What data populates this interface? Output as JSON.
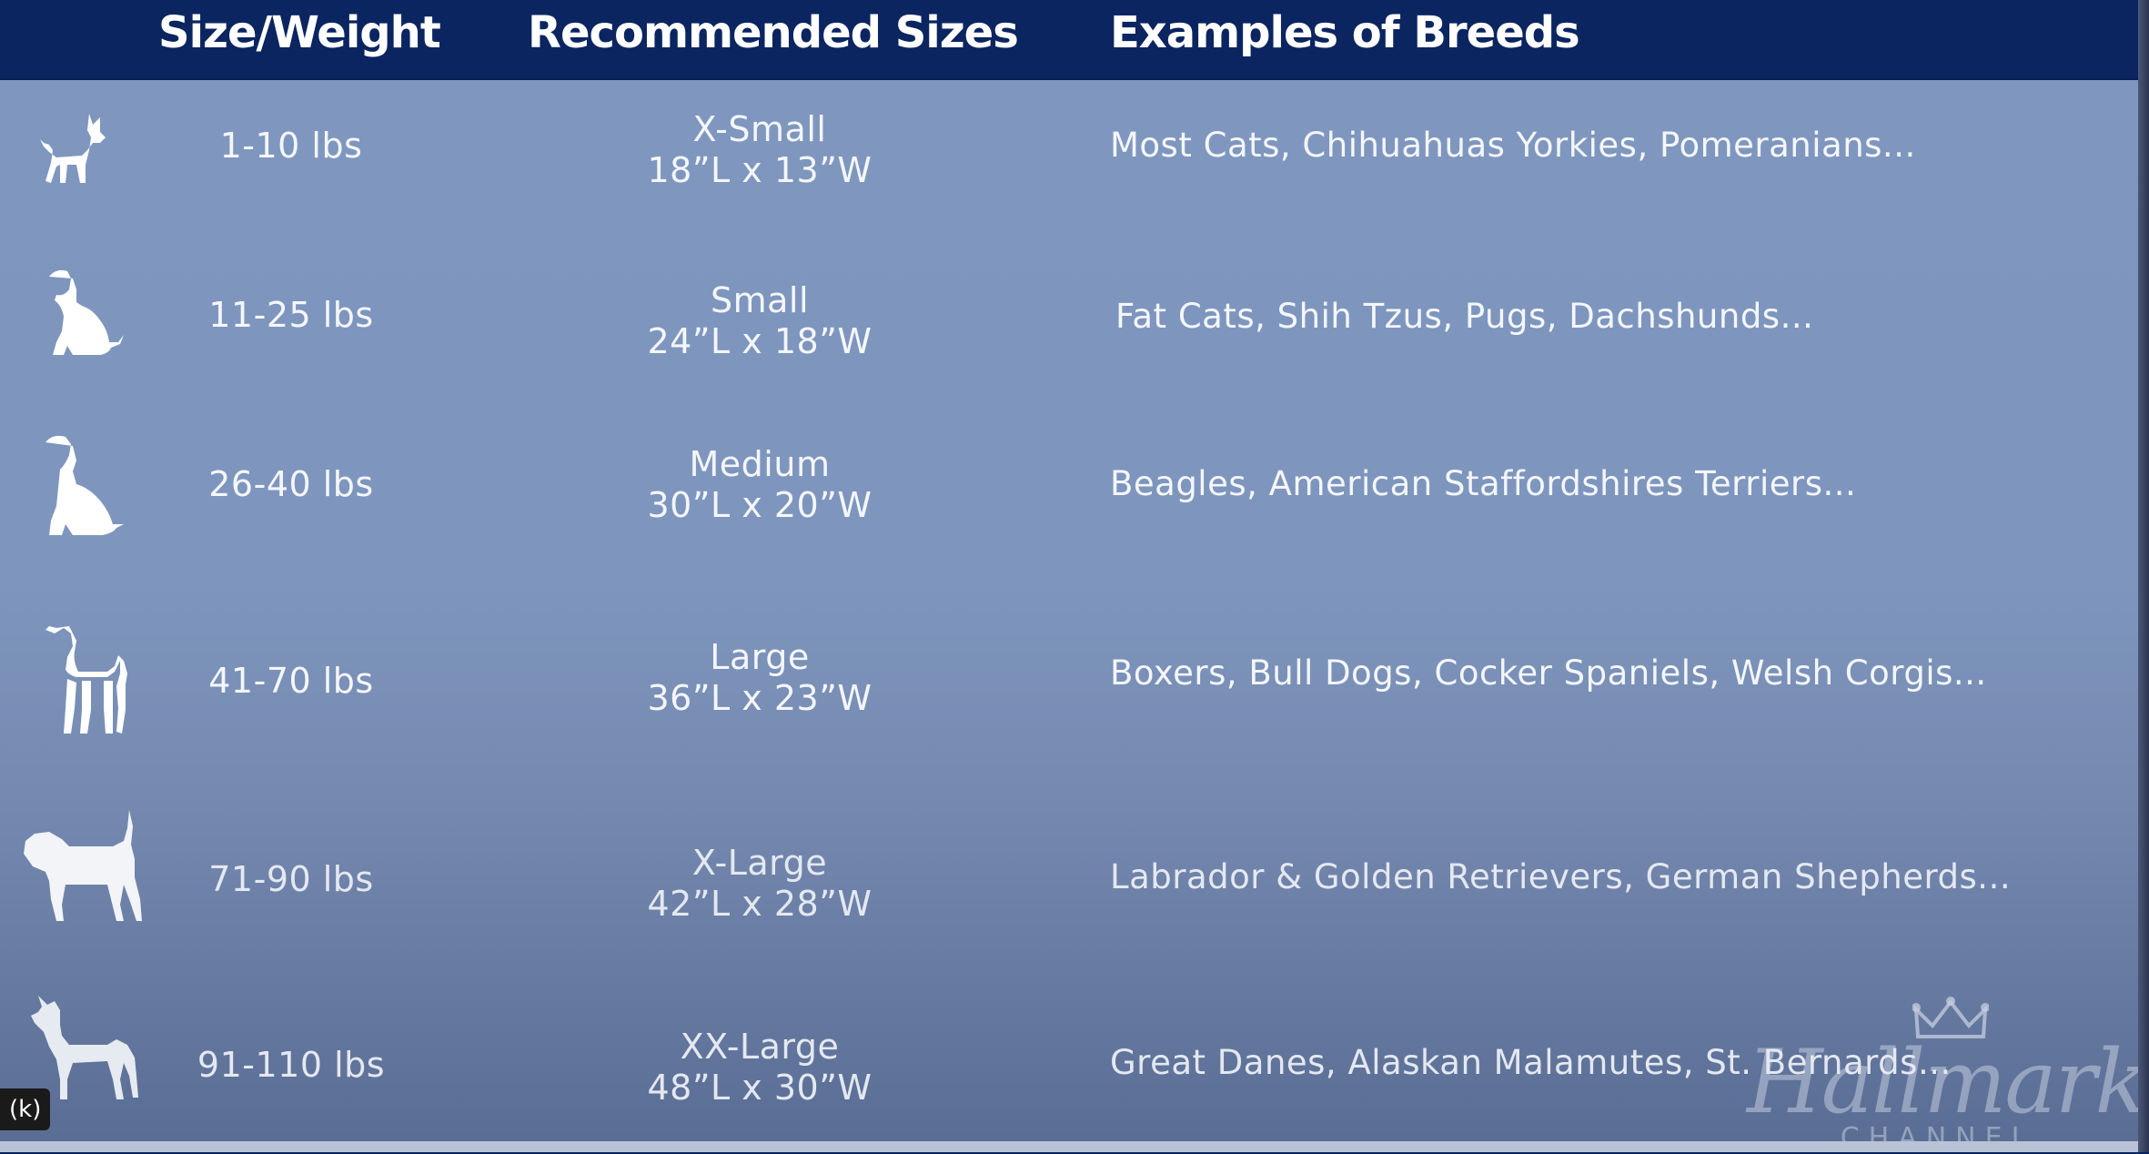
{
  "header": {
    "size_weight": "Size/Weight",
    "recommended_sizes": "Recommended Sizes",
    "examples_of_breeds": "Examples of Breeds"
  },
  "rows": [
    {
      "icon": "chihuahua-silhouette-icon",
      "weight": "1-10 lbs",
      "size_name": "X-Small",
      "dimensions": "18”L x 13”W",
      "breeds": "Most Cats, Chihuahuas Yorkies, Pomeranians..."
    },
    {
      "icon": "small-dog-sitting-icon",
      "weight": "11-25 lbs",
      "size_name": "Small",
      "dimensions": "24”L x 18”W",
      "breeds": "Fat Cats, Shih Tzus, Pugs, Dachshunds..."
    },
    {
      "icon": "beagle-sitting-icon",
      "weight": "26-40 lbs",
      "size_name": "Medium",
      "dimensions": "30”L x 20”W",
      "breeds": "Beagles, American Staffordshires Terriers..."
    },
    {
      "icon": "terrier-standing-icon",
      "weight": "41-70 lbs",
      "size_name": "Large",
      "dimensions": "36”L x 23”W",
      "breeds": "Boxers, Bull Dogs, Cocker Spaniels, Welsh Corgis..."
    },
    {
      "icon": "retriever-standing-icon",
      "weight": "71-90 lbs",
      "size_name": "X-Large",
      "dimensions": "42”L x 28”W",
      "breeds": "Labrador & Golden Retrievers,  German Shepherds..."
    },
    {
      "icon": "great-dane-standing-icon",
      "weight": "91-110 lbs",
      "size_name": "XX-Large",
      "dimensions": "48”L x 30”W",
      "breeds": "Great Danes, Alaskan Malamutes, St. Bernards..."
    }
  ],
  "badge": "(k)",
  "logo": {
    "name": "Hallmark",
    "sub": "CHANNEL"
  },
  "colors": {
    "header": "#0b2561",
    "panel": "#7f97bf",
    "text": "#f4f6fb"
  }
}
